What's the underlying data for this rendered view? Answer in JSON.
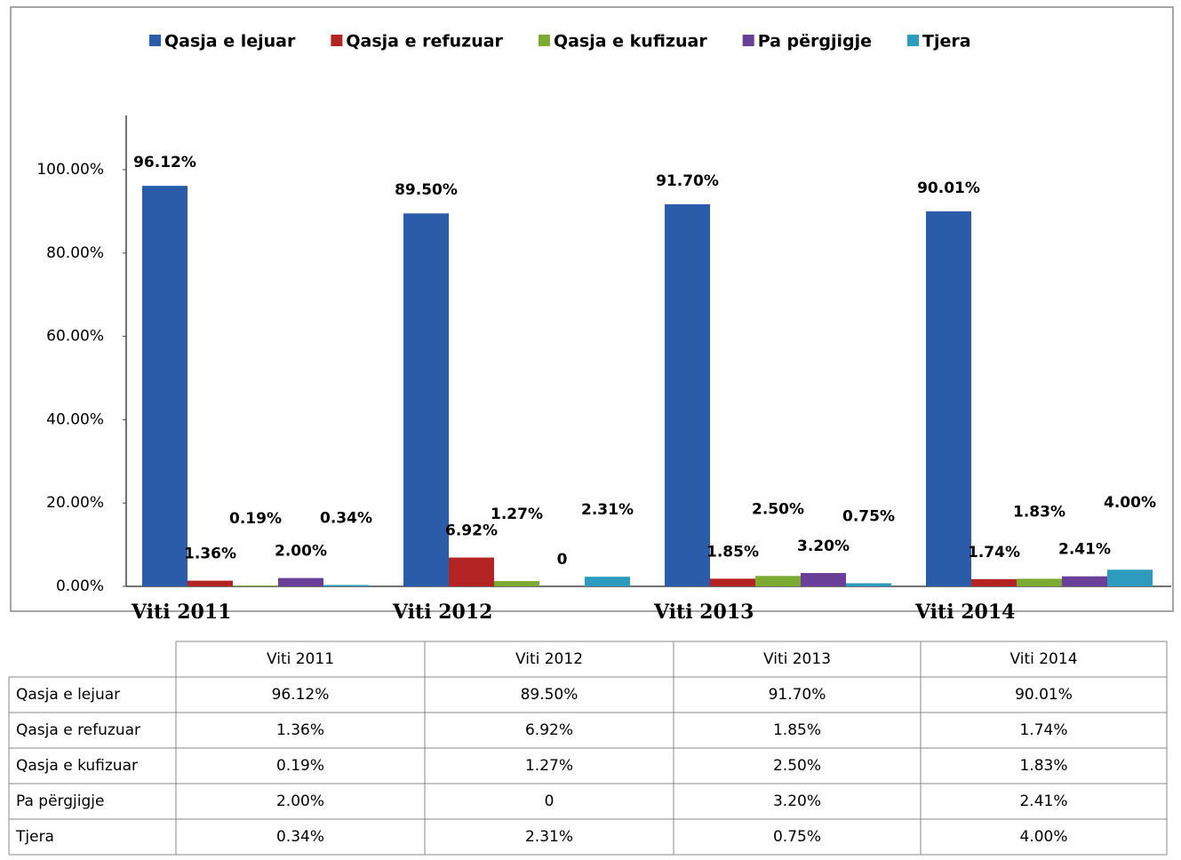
{
  "chart_data": {
    "type": "bar",
    "categories": [
      "Viti 2011",
      "Viti 2012",
      "Viti 2013",
      "Viti 2014"
    ],
    "series": [
      {
        "name": "Qasja e lejuar",
        "color": "#2a5caa",
        "values": [
          96.12,
          89.5,
          91.7,
          90.01
        ],
        "value_labels": [
          "96.12%",
          "89.50%",
          "91.70%",
          "90.01%"
        ]
      },
      {
        "name": "Qasja e refuzuar",
        "color": "#b52424",
        "values": [
          1.36,
          6.92,
          1.85,
          1.74
        ],
        "value_labels": [
          "1.36%",
          "6.92%",
          "1.85%",
          "1.74%"
        ]
      },
      {
        "name": "Qasja e kufizuar",
        "color": "#7caa33",
        "values": [
          0.19,
          1.27,
          2.5,
          1.83
        ],
        "value_labels": [
          "0.19%",
          "1.27%",
          "2.50%",
          "1.83%"
        ]
      },
      {
        "name": "Pa përgjigje",
        "color": "#6a3f98",
        "values": [
          2.0,
          0,
          3.2,
          2.41
        ],
        "value_labels": [
          "2.00%",
          "0",
          "3.20%",
          "2.41%"
        ]
      },
      {
        "name": "Tjera",
        "color": "#2c9bbd",
        "values": [
          0.34,
          2.31,
          0.75,
          4.0
        ],
        "value_labels": [
          "0.34%",
          "2.31%",
          "0.75%",
          "4.00%"
        ]
      }
    ],
    "ylim": [
      0,
      113
    ],
    "yticks": [
      {
        "value": 0,
        "label": "0.00%"
      },
      {
        "value": 20,
        "label": "20.00%"
      },
      {
        "value": 40,
        "label": "40.00%"
      },
      {
        "value": 60,
        "label": "60.00%"
      },
      {
        "value": 80,
        "label": "80.00%"
      },
      {
        "value": 100,
        "label": "100.00%"
      }
    ],
    "grid": false,
    "legend": "top"
  },
  "table": {
    "header": [
      "Viti 2011",
      "Viti 2012",
      "Viti 2013",
      "Viti 2014"
    ],
    "rows": [
      [
        "Qasja e lejuar",
        "96.12%",
        "89.50%",
        "91.70%",
        "90.01%"
      ],
      [
        "Qasja e refuzuar",
        "1.36%",
        "6.92%",
        "1.85%",
        "1.74%"
      ],
      [
        "Qasja e kufizuar",
        "0.19%",
        "1.27%",
        "2.50%",
        "1.83%"
      ],
      [
        "Pa përgjigje",
        "2.00%",
        "0",
        "3.20%",
        "2.41%"
      ],
      [
        "Tjera",
        "0.34%",
        "2.31%",
        "0.75%",
        "4.00%"
      ]
    ]
  }
}
